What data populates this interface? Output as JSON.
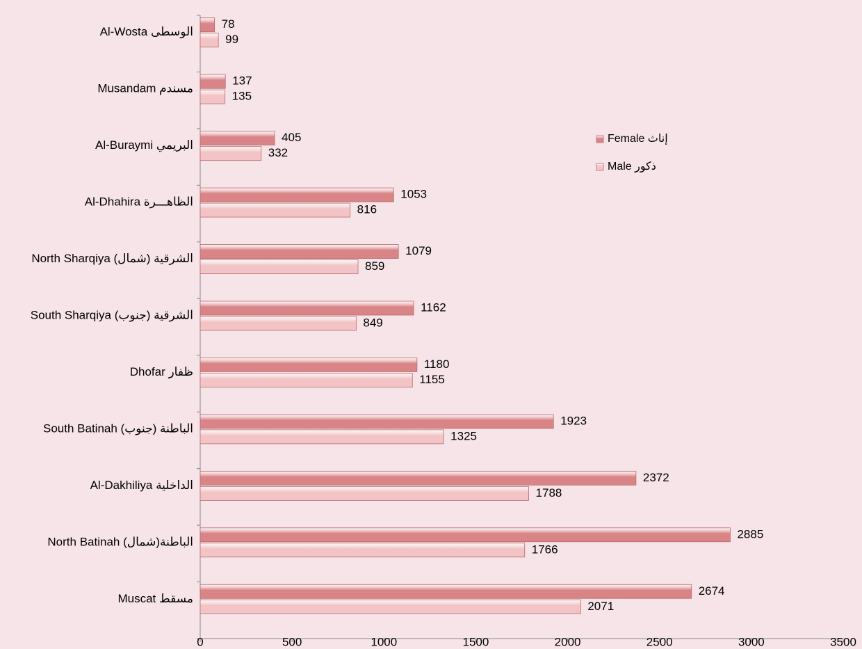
{
  "chart_data": {
    "type": "bar",
    "orientation": "horizontal",
    "categories": [
      "مسقط Muscat",
      "الباطنة(شمال) North Batinah",
      "الداخلية  Al-Dakhiliya",
      "الباطنة (جنوب) South Batinah",
      "ظفار Dhofar",
      "الشرقية (جنوب) South Sharqiya",
      "الشرقية (شمال) North Sharqiya",
      "الظاهـــرة Al-Dhahira",
      "البريمي  Al-Buraymi",
      "مسندم Musandam",
      "الوسطى  Al-Wosta"
    ],
    "series": [
      {
        "name": "إناث  Female",
        "color": "#d98587",
        "values": [
          2674,
          2885,
          2372,
          1923,
          1180,
          1162,
          1079,
          1053,
          405,
          137,
          78
        ]
      },
      {
        "name": "ذكور  Male",
        "color": "#f3c4c6",
        "values": [
          2071,
          1766,
          1788,
          1325,
          1155,
          849,
          859,
          816,
          332,
          135,
          99
        ]
      }
    ],
    "xlim": [
      0,
      3500
    ],
    "xticks": [
      0,
      500,
      1000,
      1500,
      2000,
      2500,
      3000,
      3500
    ],
    "legend": "right"
  }
}
